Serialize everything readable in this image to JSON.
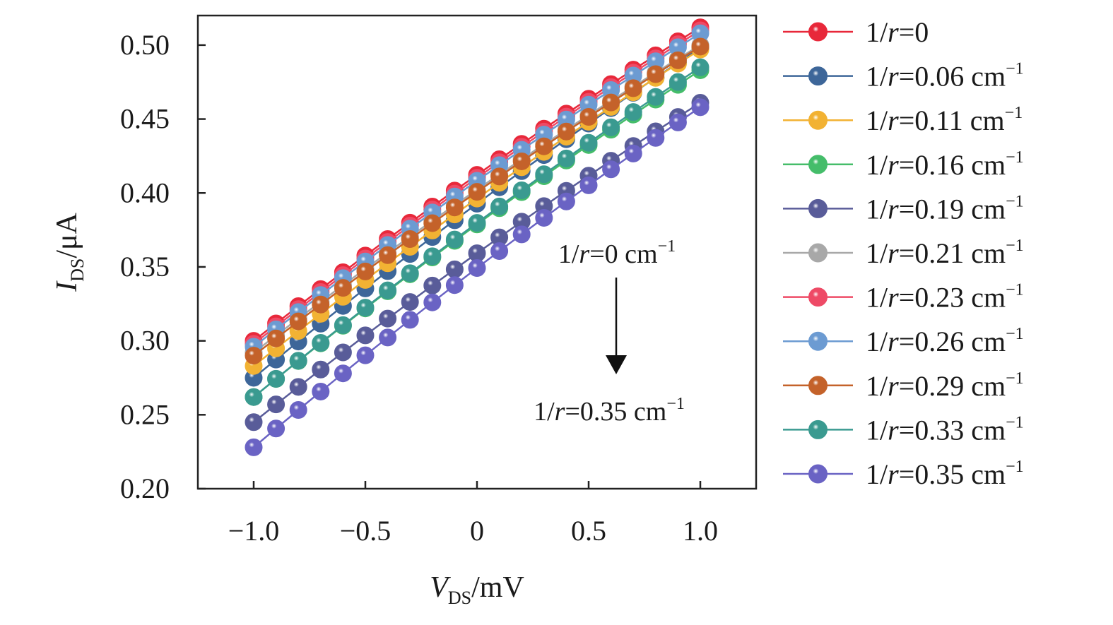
{
  "chart_data": {
    "type": "line",
    "title": "",
    "xlabel": {
      "main": "V",
      "sub": "DS",
      "unit": "/mV"
    },
    "ylabel": {
      "main": "I",
      "sub": "DS",
      "unit": "/μA"
    },
    "xlim": [
      -1.25,
      1.25
    ],
    "ylim": [
      0.2,
      0.52
    ],
    "xticks": [
      {
        "value": -1.0,
        "label": "−1.0"
      },
      {
        "value": -0.5,
        "label": "−0.5"
      },
      {
        "value": 0,
        "label": "0"
      },
      {
        "value": 0.5,
        "label": "0.5"
      },
      {
        "value": 1.0,
        "label": "1.0"
      }
    ],
    "yticks": [
      {
        "value": 0.2,
        "label": "0.20"
      },
      {
        "value": 0.25,
        "label": "0.25"
      },
      {
        "value": 0.3,
        "label": "0.30"
      },
      {
        "value": 0.35,
        "label": "0.35"
      },
      {
        "value": 0.4,
        "label": "0.40"
      },
      {
        "value": 0.45,
        "label": "0.45"
      },
      {
        "value": 0.5,
        "label": "0.50"
      }
    ],
    "grid": false,
    "legend_position": "right",
    "x": [
      -1.0,
      -0.9,
      -0.8,
      -0.7,
      -0.6,
      -0.5,
      -0.4,
      -0.3,
      -0.2,
      -0.1,
      0.0,
      0.1,
      0.2,
      0.3,
      0.4,
      0.5,
      0.6,
      0.7,
      0.8,
      0.9,
      1.0
    ],
    "series": [
      {
        "name": "1/r=0",
        "prefix": "1/",
        "var": "r",
        "rest": "=0",
        "color": "#e8283a",
        "y_start": 0.3,
        "y_end": 0.512
      },
      {
        "name": "1/r=0.06 cm−1",
        "prefix": "1/",
        "var": "r",
        "rest": "=0.06 cm",
        "sup": "−1",
        "color": "#3d6699",
        "y_start": 0.275,
        "y_end": 0.498
      },
      {
        "name": "1/r=0.11 cm−1",
        "prefix": "1/",
        "var": "r",
        "rest": "=0.11 cm",
        "sup": "−1",
        "color": "#f2b233",
        "y_start": 0.283,
        "y_end": 0.497
      },
      {
        "name": "1/r=0.16 cm−1",
        "prefix": "1/",
        "var": "r",
        "rest": "=0.16 cm",
        "sup": "−1",
        "color": "#45bd6a",
        "y_start": 0.262,
        "y_end": 0.483
      },
      {
        "name": "1/r=0.19 cm−1",
        "prefix": "1/",
        "var": "r",
        "rest": "=0.19 cm",
        "sup": "−1",
        "color": "#595c99",
        "y_start": 0.245,
        "y_end": 0.461
      },
      {
        "name": "1/r=0.21 cm−1",
        "prefix": "1/",
        "var": "r",
        "rest": "=0.21 cm",
        "sup": "−1",
        "color": "#a8a8a8",
        "y_start": 0.292,
        "y_end": 0.5
      },
      {
        "name": "1/r=0.23 cm−1",
        "prefix": "1/",
        "var": "r",
        "rest": "=0.23 cm",
        "sup": "−1",
        "color": "#ee4a66",
        "y_start": 0.298,
        "y_end": 0.51
      },
      {
        "name": "1/r=0.26 cm−1",
        "prefix": "1/",
        "var": "r",
        "rest": "=0.26 cm",
        "sup": "−1",
        "color": "#6c9bd2",
        "y_start": 0.296,
        "y_end": 0.508
      },
      {
        "name": "1/r=0.29 cm−1",
        "prefix": "1/",
        "var": "r",
        "rest": "=0.29 cm",
        "sup": "−1",
        "color": "#c4622a",
        "y_start": 0.29,
        "y_end": 0.499
      },
      {
        "name": "1/r=0.33 cm−1",
        "prefix": "1/",
        "var": "r",
        "rest": "=0.33 cm",
        "sup": "−1",
        "color": "#3a9a90",
        "y_start": 0.262,
        "y_end": 0.485
      },
      {
        "name": "1/r=0.35 cm−1",
        "prefix": "1/",
        "var": "r",
        "rest": "=0.35 cm",
        "sup": "−1",
        "color": "#6a63c4",
        "y_start": 0.228,
        "y_end": 0.458
      }
    ],
    "annotations": {
      "top": {
        "prefix": "1/",
        "var": "r",
        "rest": "=0 cm",
        "sup": "−1"
      },
      "bottom": {
        "prefix": "1/",
        "var": "r",
        "rest": "=0.35 cm",
        "sup": "−1"
      },
      "arrow": "down"
    }
  }
}
